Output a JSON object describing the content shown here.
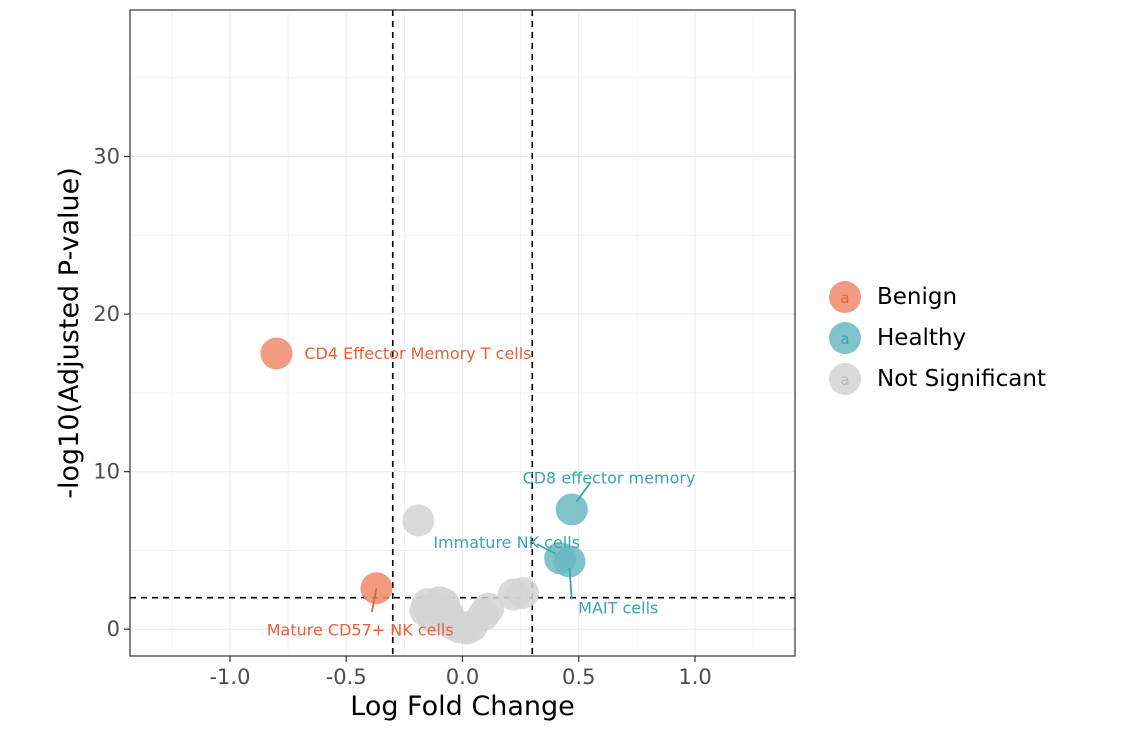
{
  "chart_data": {
    "type": "scatter",
    "title": "",
    "xlabel": "Log Fold Change",
    "ylabel": "-log10(Adjusted P-value)",
    "xlim": [
      -1.43,
      1.43
    ],
    "ylim": [
      -1.7,
      39.3
    ],
    "x_ticks": [
      -1.0,
      -0.5,
      0.0,
      0.5,
      1.0
    ],
    "x_tick_labels": [
      "-1.0",
      "-0.5",
      "0.0",
      "0.5",
      "1.0"
    ],
    "y_ticks": [
      0,
      10,
      20,
      30
    ],
    "y_tick_labels": [
      "0",
      "10",
      "20",
      "30"
    ],
    "grid": true,
    "thresholds": {
      "vlines": [
        -0.3,
        0.3
      ],
      "hline": 2
    },
    "legend_position": "right",
    "legend": [
      {
        "key": "Benign",
        "label": "Benign",
        "color": "#f08a6c",
        "text_color": "#e8603a"
      },
      {
        "key": "Healthy",
        "label": "Healthy",
        "color": "#6bb8c2",
        "text_color": "#3ea3ae"
      },
      {
        "key": "NS",
        "label": "Not Significant",
        "color": "#d3d3d3",
        "text_color": "#b8b8b8"
      }
    ],
    "points": [
      {
        "x": -0.8,
        "y": 17.5,
        "group": "Benign"
      },
      {
        "x": -0.37,
        "y": 2.6,
        "group": "Benign"
      },
      {
        "x": 0.47,
        "y": 7.6,
        "group": "Healthy"
      },
      {
        "x": 0.42,
        "y": 4.5,
        "group": "Healthy"
      },
      {
        "x": 0.46,
        "y": 4.3,
        "group": "Healthy"
      },
      {
        "x": -0.19,
        "y": 6.9,
        "group": "NS"
      },
      {
        "x": -0.15,
        "y": 1.6,
        "group": "NS"
      },
      {
        "x": -0.1,
        "y": 1.7,
        "group": "NS"
      },
      {
        "x": -0.08,
        "y": 1.6,
        "group": "NS"
      },
      {
        "x": -0.16,
        "y": 1.2,
        "group": "NS"
      },
      {
        "x": -0.13,
        "y": 0.8,
        "group": "NS"
      },
      {
        "x": -0.06,
        "y": 0.9,
        "group": "NS"
      },
      {
        "x": -0.04,
        "y": 0.3,
        "group": "NS"
      },
      {
        "x": -0.01,
        "y": 0.1,
        "group": "NS"
      },
      {
        "x": 0.02,
        "y": 0.05,
        "group": "NS"
      },
      {
        "x": 0.04,
        "y": 0.2,
        "group": "NS"
      },
      {
        "x": 0.09,
        "y": 0.9,
        "group": "NS"
      },
      {
        "x": 0.11,
        "y": 1.3,
        "group": "NS"
      },
      {
        "x": 0.22,
        "y": 2.2,
        "group": "NS"
      },
      {
        "x": 0.26,
        "y": 2.3,
        "group": "NS"
      }
    ],
    "annotations": [
      {
        "text": "CD4 Effector Memory T cells",
        "group": "Benign",
        "x": -0.68,
        "y": 17.5,
        "anchor": "start",
        "segment": false
      },
      {
        "text": "Mature CD57+ NK cells",
        "group": "Benign",
        "x": -0.44,
        "y": -0.05,
        "anchor": "middle",
        "segment": true,
        "sx": -0.39,
        "sy": 1.1,
        "ex": -0.37,
        "ey": 2.6
      },
      {
        "text": "CD8 effector memory",
        "group": "Healthy",
        "x": 0.63,
        "y": 9.6,
        "anchor": "middle",
        "segment": true,
        "sx": 0.55,
        "sy": 9.3,
        "ex": 0.49,
        "ey": 8.1
      },
      {
        "text": "Immature NK cells",
        "group": "Healthy",
        "x": 0.19,
        "y": 5.5,
        "anchor": "middle",
        "segment": true,
        "sx": 0.32,
        "sy": 5.4,
        "ex": 0.4,
        "ey": 4.8
      },
      {
        "text": "MAIT cells",
        "group": "Healthy",
        "x": 0.67,
        "y": 1.35,
        "anchor": "middle",
        "segment": true,
        "sx": 0.47,
        "sy": 1.9,
        "ex": 0.46,
        "ey": 3.9
      }
    ]
  }
}
